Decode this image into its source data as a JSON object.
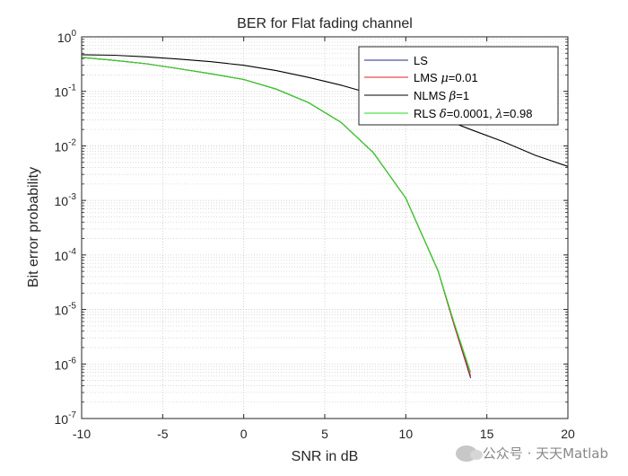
{
  "chart_data": {
    "type": "line",
    "title": "BER for Flat fading channel",
    "xlabel": "SNR in dB",
    "ylabel": "Bit error probability",
    "xlim": [
      -10,
      20
    ],
    "ylim": [
      1e-07,
      1
    ],
    "yscale": "log",
    "grid": true,
    "minor_grid": true,
    "legend_position": "top-right",
    "x_ticks": [
      -10,
      -5,
      0,
      5,
      10,
      15,
      20
    ],
    "x_tick_labels": [
      "-10",
      "-5",
      "0",
      "5",
      "10",
      "15",
      "20"
    ],
    "y_tick_exponents": [
      0,
      -1,
      -2,
      -3,
      -4,
      -5,
      -6,
      -7
    ],
    "series": [
      {
        "name": "LS",
        "color": "#1f2d8a",
        "x": [
          -10,
          -8,
          -6,
          -4,
          -2,
          0,
          2,
          4,
          6,
          8,
          10,
          12,
          13,
          14
        ],
        "y": [
          0.42,
          0.37,
          0.32,
          0.26,
          0.21,
          0.165,
          0.11,
          0.062,
          0.027,
          0.0075,
          0.0011,
          5e-05,
          5e-06,
          5.5e-07
        ]
      },
      {
        "name": "LMS μ=0.01",
        "color": "#e02020",
        "x": [
          -10,
          -8,
          -6,
          -4,
          -2,
          0,
          2,
          4,
          6,
          8,
          10,
          12,
          13,
          14
        ],
        "y": [
          0.42,
          0.37,
          0.32,
          0.26,
          0.21,
          0.165,
          0.11,
          0.062,
          0.027,
          0.0075,
          0.0011,
          5e-05,
          5e-06,
          6e-07
        ]
      },
      {
        "name": "NLMS β=1",
        "color": "#000000",
        "x": [
          -10,
          -8,
          -6,
          -4,
          -2,
          0,
          2,
          4,
          6,
          8,
          10,
          12,
          14,
          16,
          18,
          20
        ],
        "y": [
          0.47,
          0.46,
          0.43,
          0.39,
          0.35,
          0.3,
          0.24,
          0.18,
          0.13,
          0.088,
          0.058,
          0.034,
          0.02,
          0.012,
          0.0067,
          0.0042
        ]
      },
      {
        "name": "RLS δ=0.0001, λ=0.98",
        "color": "#22dd22",
        "x": [
          -10,
          -8,
          -6,
          -4,
          -2,
          0,
          2,
          4,
          6,
          8,
          10,
          12,
          13,
          14
        ],
        "y": [
          0.42,
          0.37,
          0.32,
          0.26,
          0.21,
          0.165,
          0.11,
          0.062,
          0.027,
          0.0075,
          0.0011,
          5e-05,
          5.5e-06,
          7e-07
        ]
      }
    ]
  },
  "legend_labels": {
    "ls": "LS",
    "lms_prefix": "LMS ",
    "lms_sym": "μ",
    "lms_val": "=0.01",
    "nlms_prefix": "NLMS ",
    "nlms_sym": "β",
    "nlms_val": "=1",
    "rls_prefix": "RLS  ",
    "rls_sym1": "δ",
    "rls_val1": "=0.0001, ",
    "rls_sym2": "λ",
    "rls_val2": "=0.98"
  },
  "watermark": {
    "text": "公众号 · 天天Matlab"
  }
}
